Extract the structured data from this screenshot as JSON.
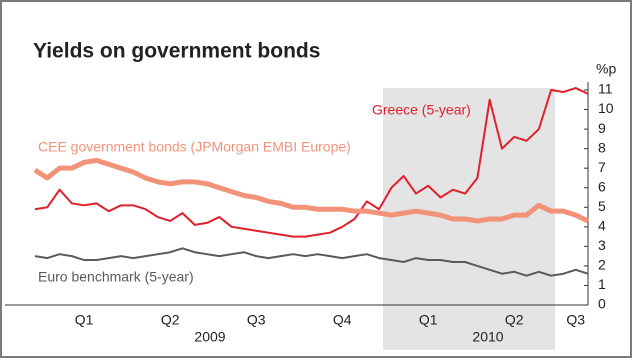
{
  "chart_data": {
    "type": "line",
    "title": "Yields on government bonds",
    "ylabel": "%p",
    "ylim": [
      0,
      11
    ],
    "yticks": [
      0,
      1,
      2,
      3,
      4,
      5,
      6,
      7,
      8,
      9,
      10,
      11
    ],
    "categories": [
      null,
      null,
      null,
      null,
      "Q1",
      null,
      null,
      null,
      null,
      null,
      null,
      "Q2",
      null,
      null,
      null,
      null,
      null,
      null,
      "Q3",
      null,
      null,
      null,
      null,
      null,
      null,
      "Q4",
      null,
      null,
      null,
      null,
      null,
      null,
      "Q1",
      null,
      null,
      null,
      null,
      null,
      null,
      "Q2",
      null,
      null,
      null,
      null,
      "Q3",
      null
    ],
    "annotations": [
      "2009",
      "2010"
    ],
    "series": [
      {
        "name": "Greece (5-year)",
        "color": "#e0202c",
        "values": [
          4.9,
          5.0,
          5.9,
          5.2,
          5.1,
          5.2,
          4.8,
          5.1,
          5.1,
          4.9,
          4.5,
          4.3,
          4.7,
          4.1,
          4.2,
          4.5,
          4.0,
          3.9,
          3.8,
          3.7,
          3.6,
          3.5,
          3.5,
          3.6,
          3.7,
          4.0,
          4.4,
          5.3,
          4.9,
          6.0,
          6.6,
          5.7,
          6.1,
          5.5,
          5.9,
          5.7,
          6.5,
          10.5,
          8.0,
          8.6,
          8.4,
          9.0,
          11.0,
          10.9,
          11.1,
          10.8
        ]
      },
      {
        "name": "CEE government bonds (JPMorgan EMBI Europe)",
        "color": "#f29379",
        "values": [
          6.9,
          6.5,
          7.0,
          7.0,
          7.3,
          7.4,
          7.2,
          7.0,
          6.8,
          6.5,
          6.3,
          6.2,
          6.3,
          6.3,
          6.2,
          6.0,
          5.8,
          5.6,
          5.5,
          5.3,
          5.2,
          5.0,
          5.0,
          4.9,
          4.9,
          4.9,
          4.8,
          4.8,
          4.7,
          4.6,
          4.7,
          4.8,
          4.7,
          4.6,
          4.4,
          4.4,
          4.3,
          4.4,
          4.4,
          4.6,
          4.6,
          5.1,
          4.8,
          4.8,
          4.6,
          4.3
        ]
      },
      {
        "name": "Euro benchmark (5-year)",
        "color": "#5a5a5a",
        "values": [
          2.5,
          2.4,
          2.6,
          2.5,
          2.3,
          2.3,
          2.4,
          2.5,
          2.4,
          2.5,
          2.6,
          2.7,
          2.9,
          2.7,
          2.6,
          2.5,
          2.6,
          2.7,
          2.5,
          2.4,
          2.5,
          2.6,
          2.5,
          2.6,
          2.5,
          2.4,
          2.5,
          2.6,
          2.4,
          2.3,
          2.2,
          2.4,
          2.3,
          2.3,
          2.2,
          2.2,
          2.0,
          1.8,
          1.6,
          1.7,
          1.5,
          1.7,
          1.5,
          1.6,
          1.8,
          1.6
        ]
      }
    ]
  }
}
